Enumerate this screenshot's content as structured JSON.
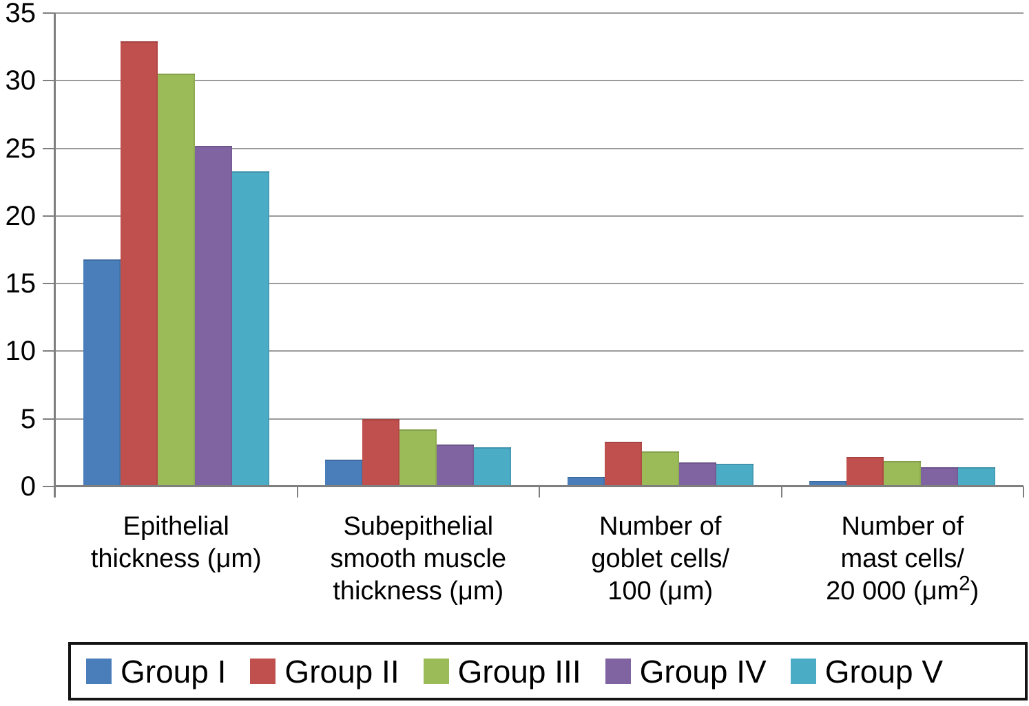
{
  "chart_data": {
    "type": "bar",
    "title": "",
    "xlabel": "",
    "ylabel": "",
    "categories": [
      "Epithelial thickness (μm)",
      "Subepithelial smooth muscle thickness (μm)",
      "Number of goblet cells/ 100 (μm)",
      "Number of mast cells/ 20 000 (μm²)"
    ],
    "category_lines": [
      [
        "Epithelial",
        "thickness (μm)"
      ],
      [
        "Subepithelial",
        "smooth muscle",
        "thickness (μm)"
      ],
      [
        "Number of",
        "goblet cells/",
        "100 (μm)"
      ],
      [
        "Number of",
        "mast cells/",
        "20 000 (μm²)"
      ]
    ],
    "series": [
      {
        "name": "Group I",
        "color": "#4a7ebb",
        "values": [
          16.8,
          2.0,
          0.7,
          0.4
        ]
      },
      {
        "name": "Group II",
        "color": "#c0504d",
        "values": [
          32.9,
          5.0,
          3.3,
          2.2
        ]
      },
      {
        "name": "Group III",
        "color": "#9bbb59",
        "values": [
          30.5,
          4.2,
          2.6,
          1.9
        ]
      },
      {
        "name": "Group IV",
        "color": "#8064a2",
        "values": [
          25.2,
          3.1,
          1.8,
          1.4
        ]
      },
      {
        "name": "Group V",
        "color": "#4bacc6",
        "values": [
          23.3,
          2.9,
          1.7,
          1.4
        ]
      }
    ],
    "yticks": [
      0,
      5,
      10,
      15,
      20,
      25,
      30,
      35
    ],
    "ylim": [
      0,
      35
    ],
    "grid": true,
    "legend_position": "bottom"
  },
  "colors": {
    "gridline": "#9b9b9b",
    "axis": "#7f7f7f",
    "legend_border": "#141414",
    "background": "#ffffff"
  }
}
